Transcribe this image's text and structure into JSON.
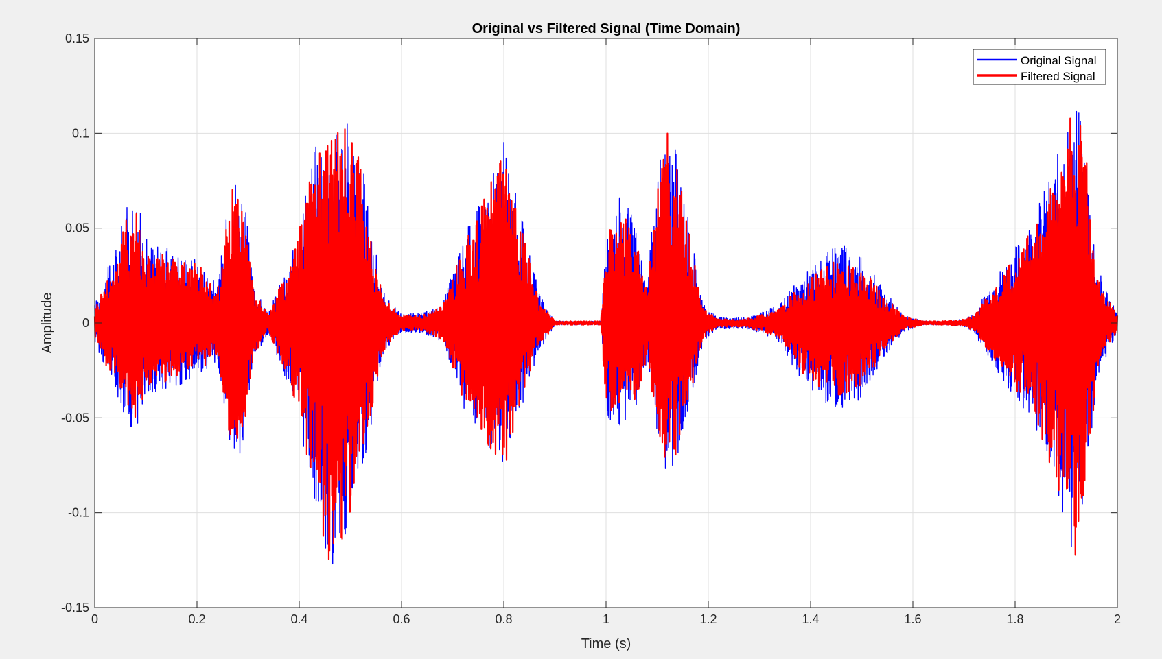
{
  "chart_data": {
    "type": "line",
    "title": "Original vs Filtered Signal (Time Domain)",
    "xlabel": "Time (s)",
    "ylabel": "Amplitude",
    "xlim": [
      0,
      2
    ],
    "ylim": [
      -0.15,
      0.15
    ],
    "xticks": [
      0,
      0.2,
      0.4,
      0.6,
      0.8,
      1,
      1.2,
      1.4,
      1.6,
      1.8,
      2
    ],
    "xtick_labels": [
      "0",
      "0.2",
      "0.4",
      "0.6",
      "0.8",
      "1",
      "1.2",
      "1.4",
      "1.6",
      "1.8",
      "2"
    ],
    "yticks": [
      -0.15,
      -0.1,
      -0.05,
      0,
      0.05,
      0.1,
      0.15
    ],
    "ytick_labels": [
      "-0.15",
      "-0.1",
      "-0.05",
      "0",
      "0.05",
      "0.1",
      "0.15"
    ],
    "grid": true,
    "legend_position": "top-right",
    "series": [
      {
        "name": "Original Signal",
        "color": "#0000ff",
        "envelope_time": [
          0,
          0.02,
          0.04,
          0.06,
          0.08,
          0.1,
          0.14,
          0.2,
          0.24,
          0.27,
          0.29,
          0.31,
          0.34,
          0.36,
          0.38,
          0.4,
          0.42,
          0.44,
          0.46,
          0.48,
          0.5,
          0.52,
          0.54,
          0.56,
          0.58,
          0.6,
          0.64,
          0.68,
          0.72,
          0.76,
          0.8,
          0.84,
          0.87,
          0.9,
          0.95,
          0.99,
          1.0,
          1.03,
          1.06,
          1.08,
          1.1,
          1.12,
          1.14,
          1.16,
          1.19,
          1.22,
          1.27,
          1.3,
          1.34,
          1.38,
          1.42,
          1.46,
          1.5,
          1.54,
          1.58,
          1.62,
          1.66,
          1.7,
          1.72,
          1.76,
          1.8,
          1.84,
          1.88,
          1.9,
          1.92,
          1.94,
          1.96,
          2.0
        ],
        "envelope_upper": [
          0.01,
          0.025,
          0.04,
          0.06,
          0.072,
          0.045,
          0.04,
          0.035,
          0.02,
          0.083,
          0.075,
          0.02,
          0.005,
          0.02,
          0.03,
          0.055,
          0.085,
          0.105,
          0.095,
          0.11,
          0.105,
          0.09,
          0.055,
          0.02,
          0.01,
          0.005,
          0.005,
          0.01,
          0.045,
          0.07,
          0.096,
          0.05,
          0.015,
          0.001,
          0.001,
          0.001,
          0.055,
          0.07,
          0.05,
          0.02,
          0.08,
          0.102,
          0.09,
          0.06,
          0.01,
          0.003,
          0.003,
          0.005,
          0.01,
          0.025,
          0.035,
          0.042,
          0.035,
          0.02,
          0.005,
          0.001,
          0.001,
          0.002,
          0.005,
          0.025,
          0.04,
          0.06,
          0.085,
          0.11,
          0.118,
          0.09,
          0.03,
          0.005
        ],
        "envelope_lower": [
          -0.01,
          -0.025,
          -0.035,
          -0.052,
          -0.058,
          -0.04,
          -0.035,
          -0.03,
          -0.02,
          -0.078,
          -0.078,
          -0.02,
          -0.005,
          -0.02,
          -0.035,
          -0.058,
          -0.085,
          -0.105,
          -0.135,
          -0.12,
          -0.115,
          -0.085,
          -0.055,
          -0.02,
          -0.01,
          -0.005,
          -0.005,
          -0.01,
          -0.045,
          -0.065,
          -0.075,
          -0.04,
          -0.015,
          -0.001,
          -0.001,
          -0.001,
          -0.05,
          -0.055,
          -0.045,
          -0.02,
          -0.06,
          -0.082,
          -0.07,
          -0.05,
          -0.01,
          -0.003,
          -0.003,
          -0.005,
          -0.01,
          -0.03,
          -0.042,
          -0.045,
          -0.04,
          -0.02,
          -0.005,
          -0.001,
          -0.001,
          -0.002,
          -0.005,
          -0.025,
          -0.04,
          -0.055,
          -0.09,
          -0.105,
          -0.132,
          -0.095,
          -0.03,
          -0.005
        ]
      },
      {
        "name": "Filtered Signal",
        "color": "#ff0000",
        "envelope_time": [
          0,
          0.02,
          0.04,
          0.06,
          0.08,
          0.1,
          0.14,
          0.2,
          0.24,
          0.27,
          0.29,
          0.31,
          0.34,
          0.36,
          0.38,
          0.4,
          0.42,
          0.44,
          0.46,
          0.48,
          0.5,
          0.52,
          0.54,
          0.56,
          0.58,
          0.6,
          0.64,
          0.68,
          0.72,
          0.76,
          0.8,
          0.84,
          0.87,
          0.9,
          0.95,
          0.99,
          1.0,
          1.03,
          1.06,
          1.08,
          1.1,
          1.12,
          1.14,
          1.16,
          1.19,
          1.22,
          1.27,
          1.3,
          1.34,
          1.38,
          1.42,
          1.46,
          1.5,
          1.54,
          1.58,
          1.62,
          1.66,
          1.7,
          1.72,
          1.76,
          1.8,
          1.84,
          1.88,
          1.9,
          1.92,
          1.94,
          1.96,
          2.0
        ],
        "envelope_upper": [
          0.008,
          0.022,
          0.035,
          0.055,
          0.066,
          0.04,
          0.036,
          0.032,
          0.018,
          0.075,
          0.068,
          0.018,
          0.004,
          0.018,
          0.027,
          0.05,
          0.078,
          0.112,
          0.1,
          0.105,
          0.1,
          0.085,
          0.05,
          0.018,
          0.009,
          0.004,
          0.004,
          0.009,
          0.04,
          0.065,
          0.093,
          0.045,
          0.012,
          0.001,
          0.001,
          0.001,
          0.05,
          0.06,
          0.045,
          0.018,
          0.075,
          0.108,
          0.095,
          0.055,
          0.008,
          0.002,
          0.002,
          0.004,
          0.008,
          0.02,
          0.03,
          0.034,
          0.03,
          0.016,
          0.004,
          0.001,
          0.001,
          0.002,
          0.004,
          0.02,
          0.035,
          0.055,
          0.08,
          0.11,
          0.119,
          0.088,
          0.025,
          0.004
        ],
        "envelope_lower": [
          -0.008,
          -0.022,
          -0.03,
          -0.047,
          -0.052,
          -0.036,
          -0.031,
          -0.027,
          -0.018,
          -0.072,
          -0.07,
          -0.018,
          -0.004,
          -0.018,
          -0.03,
          -0.052,
          -0.078,
          -0.102,
          -0.138,
          -0.115,
          -0.11,
          -0.08,
          -0.05,
          -0.018,
          -0.009,
          -0.004,
          -0.004,
          -0.009,
          -0.04,
          -0.06,
          -0.078,
          -0.035,
          -0.012,
          -0.001,
          -0.001,
          -0.001,
          -0.045,
          -0.05,
          -0.04,
          -0.018,
          -0.055,
          -0.078,
          -0.068,
          -0.045,
          -0.008,
          -0.002,
          -0.002,
          -0.004,
          -0.008,
          -0.025,
          -0.036,
          -0.04,
          -0.035,
          -0.016,
          -0.004,
          -0.001,
          -0.001,
          -0.002,
          -0.004,
          -0.02,
          -0.035,
          -0.05,
          -0.085,
          -0.1,
          -0.128,
          -0.09,
          -0.025,
          -0.004
        ]
      }
    ]
  }
}
